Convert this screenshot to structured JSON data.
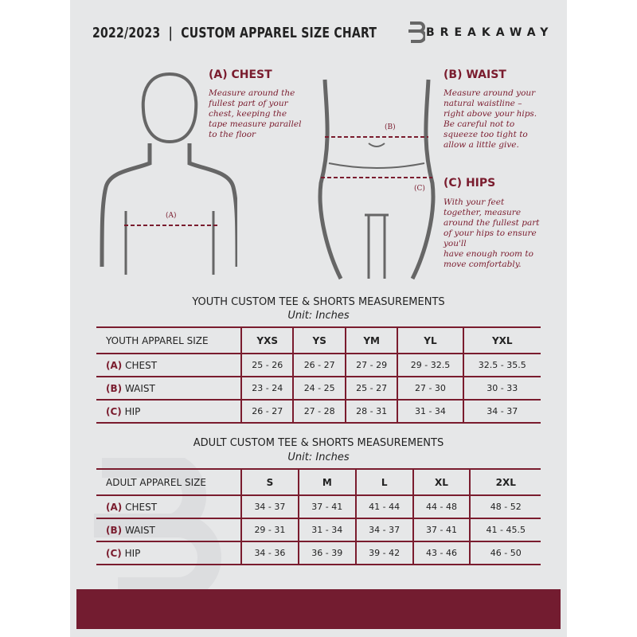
{
  "header": {
    "title": "2022/2023  |  CUSTOM APPAREL SIZE CHART",
    "brand": "BREAKAWAY"
  },
  "chest": {
    "label": "(A) CHEST",
    "marker": "(A)",
    "desc": [
      "Measure around the",
      "fullest part of your",
      "chest, keeping the",
      "tape measure parallel",
      "to the floor"
    ]
  },
  "waist": {
    "label": "(B) WAIST",
    "marker": "(B)",
    "desc": [
      "Measure around your",
      "natural waistline –",
      "right above your hips.",
      "Be careful not to",
      "squeeze too tight to",
      "allow a little give."
    ]
  },
  "hips": {
    "label": "(C) HIPS",
    "marker": "(C)",
    "desc": [
      "With your feet",
      "together, measure",
      "around the fullest part",
      "of your hips to ensure",
      "you'll",
      "have enough room to",
      "move comfortably."
    ]
  },
  "youth": {
    "title": "YOUTH CUSTOM TEE & SHORTS MEASUREMENTS",
    "unit": "Unit: Inches",
    "size_label": "YOUTH APPAREL SIZE",
    "sizes": [
      "YXS",
      "YS",
      "YM",
      "YL",
      "YXL"
    ],
    "rows": [
      {
        "letter": "(A)",
        "name": "CHEST",
        "values": [
          "25 - 26",
          "26 - 27",
          "27 - 29",
          "29 - 32.5",
          "32.5 - 35.5"
        ]
      },
      {
        "letter": "(B)",
        "name": "WAIST",
        "values": [
          "23 - 24",
          "24 - 25",
          "25 - 27",
          "27 - 30",
          "30 - 33"
        ]
      },
      {
        "letter": "(C)",
        "name": "HIP",
        "values": [
          "26 - 27",
          "27 - 28",
          "28 - 31",
          "31 - 34",
          "34 - 37"
        ]
      }
    ]
  },
  "adult": {
    "title": "ADULT CUSTOM TEE & SHORTS MEASUREMENTS",
    "unit": "Unit: Inches",
    "size_label": "ADULT APPAREL SIZE",
    "sizes": [
      "S",
      "M",
      "L",
      "XL",
      "2XL"
    ],
    "rows": [
      {
        "letter": "(A)",
        "name": "CHEST",
        "values": [
          "34 - 37",
          "37 - 41",
          "41 - 44",
          "44 - 48",
          "48 - 52"
        ]
      },
      {
        "letter": "(B)",
        "name": "WAIST",
        "values": [
          "29 - 31",
          "31 - 34",
          "34 - 37",
          "37 - 41",
          "41 - 45.5"
        ]
      },
      {
        "letter": "(C)",
        "name": "HIP",
        "values": [
          "34 - 36",
          "36 - 39",
          "39 - 42",
          "43 - 46",
          "46 - 50"
        ]
      }
    ]
  },
  "colors": {
    "accent": "#731c30",
    "panel": "#e6e7e8"
  }
}
